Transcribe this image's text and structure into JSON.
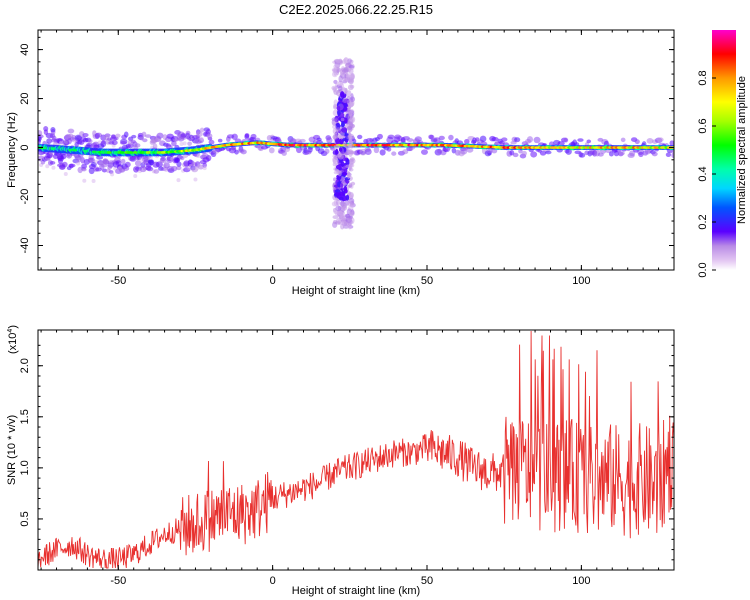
{
  "title": "C2E2.2025.066.22.25.R15",
  "chart_data": [
    {
      "type": "heatmap",
      "xlabel": "Height of straight line (km)",
      "ylabel": "Frequency (Hz)",
      "xlim": [
        -76,
        130
      ],
      "ylim": [
        -50,
        48
      ],
      "x_ticks": [
        -50,
        0,
        50,
        100
      ],
      "y_ticks": [
        -40,
        -20,
        0,
        20,
        40
      ],
      "x_tick_labels": [
        "-50",
        "0",
        "50",
        "100"
      ],
      "y_tick_labels": [
        "-40",
        "-20",
        "0",
        "20",
        "40"
      ],
      "grid": false,
      "band": [
        {
          "x": -76,
          "f": 0,
          "amp": 0.5
        },
        {
          "x": -65,
          "f": -1,
          "amp": 0.45
        },
        {
          "x": -55,
          "f": -2,
          "amp": 0.5
        },
        {
          "x": -45,
          "f": -2,
          "amp": 0.55
        },
        {
          "x": -35,
          "f": -2,
          "amp": 0.6
        },
        {
          "x": -25,
          "f": -1,
          "amp": 0.7
        },
        {
          "x": -15,
          "f": 1,
          "amp": 0.85
        },
        {
          "x": -5,
          "f": 2,
          "amp": 0.8
        },
        {
          "x": 5,
          "f": 1,
          "amp": 0.9
        },
        {
          "x": 15,
          "f": 1,
          "amp": 0.85
        },
        {
          "x": 35,
          "f": 1,
          "amp": 0.9
        },
        {
          "x": 55,
          "f": 1,
          "amp": 0.8
        },
        {
          "x": 75,
          "f": 0,
          "amp": 0.85
        },
        {
          "x": 95,
          "f": 0,
          "amp": 0.75
        },
        {
          "x": 115,
          "f": 0,
          "amp": 0.8
        },
        {
          "x": 130,
          "f": 0,
          "amp": 0.7
        }
      ],
      "vertical_burst": {
        "x_range": [
          20,
          26
        ],
        "f_range": [
          -33,
          36
        ],
        "amp": 0.2
      }
    },
    {
      "type": "line",
      "xlabel": "Height of straight line (km)",
      "ylabel": "SNR (10 * v/v)",
      "y_multiplier": "(x10",
      "y_multiplier_exp": "4",
      "y_multiplier_close": ")",
      "xlim": [
        -76,
        130
      ],
      "ylim": [
        0,
        2.35
      ],
      "x_ticks": [
        -50,
        0,
        50,
        100
      ],
      "y_ticks": [
        0.5,
        1.0,
        1.5,
        2.0
      ],
      "x_tick_labels": [
        "-50",
        "0",
        "50",
        "100"
      ],
      "y_tick_labels": [
        "0.5",
        "1.0",
        "1.5",
        "2.0"
      ],
      "grid": false,
      "series": [
        {
          "color": "#e8302e",
          "x": [
            -76,
            -70,
            -65,
            -60,
            -55,
            -50,
            -45,
            -40,
            -35,
            -30,
            -25,
            -20,
            -15,
            -10,
            -5,
            0,
            5,
            10,
            15,
            20,
            25,
            30,
            35,
            40,
            45,
            50,
            55,
            60,
            65,
            70,
            75,
            80,
            85,
            90,
            95,
            100,
            105,
            110,
            115,
            120,
            125,
            130
          ],
          "y": [
            0.1,
            0.2,
            0.25,
            0.15,
            0.1,
            0.1,
            0.15,
            0.25,
            0.35,
            0.4,
            0.45,
            0.5,
            0.55,
            0.55,
            0.6,
            0.7,
            0.75,
            0.8,
            0.85,
            0.95,
            1.0,
            1.05,
            1.1,
            1.15,
            1.15,
            1.2,
            1.15,
            1.1,
            1.0,
            0.95,
            0.95,
            1.0,
            0.95,
            0.9,
            0.95,
            0.9,
            0.85,
            0.9,
            0.85,
            0.9,
            0.8,
            1.2
          ]
        }
      ]
    }
  ],
  "colorbar": {
    "label": "Normalized spectral amplitude",
    "ticks": [
      0.0,
      0.2,
      0.4,
      0.6,
      0.8
    ],
    "tick_labels": [
      "0.0",
      "0.2",
      "0.4",
      "0.6",
      "0.8"
    ],
    "range": [
      0,
      1
    ]
  }
}
